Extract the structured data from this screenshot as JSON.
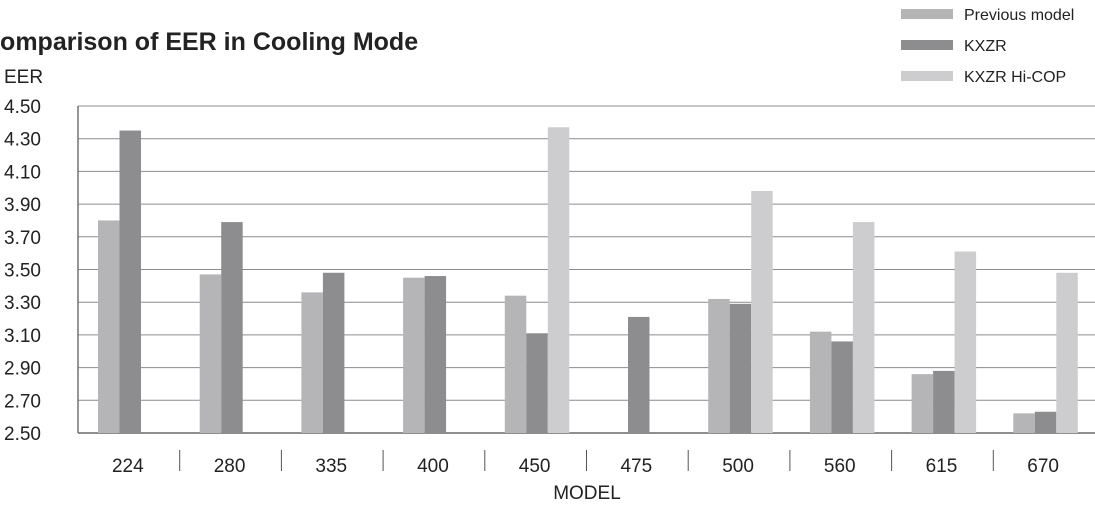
{
  "chart_data": {
    "type": "bar",
    "title": "Comparison of EER in Cooling Mode",
    "ylabel": "EER",
    "xlabel": "MODEL",
    "ylim": [
      2.5,
      4.5
    ],
    "yticks": [
      "4.50",
      "4.30",
      "4.10",
      "3.90",
      "3.70",
      "3.50",
      "3.30",
      "3.10",
      "2.90",
      "2.70",
      "2.50"
    ],
    "ytick_values": [
      4.5,
      4.3,
      4.1,
      3.9,
      3.7,
      3.5,
      3.3,
      3.1,
      2.9,
      2.7,
      2.5
    ],
    "categories": [
      "224",
      "280",
      "335",
      "400",
      "450",
      "475",
      "500",
      "560",
      "615",
      "670"
    ],
    "grid": true,
    "legend_position": "top-right",
    "series": [
      {
        "name": "Previous model",
        "color": "#b5b5b7",
        "values": [
          3.8,
          3.47,
          3.36,
          3.45,
          3.34,
          null,
          3.32,
          3.12,
          2.86,
          2.62
        ]
      },
      {
        "name": "KXZR",
        "color": "#8d8d8f",
        "values": [
          4.35,
          3.79,
          3.48,
          3.46,
          3.11,
          3.21,
          3.29,
          3.06,
          2.88,
          2.63
        ]
      },
      {
        "name": "KXZR Hi-COP",
        "color": "#cdcdcf",
        "values": [
          null,
          null,
          null,
          null,
          4.37,
          null,
          3.98,
          3.79,
          3.61,
          3.48
        ]
      }
    ]
  }
}
